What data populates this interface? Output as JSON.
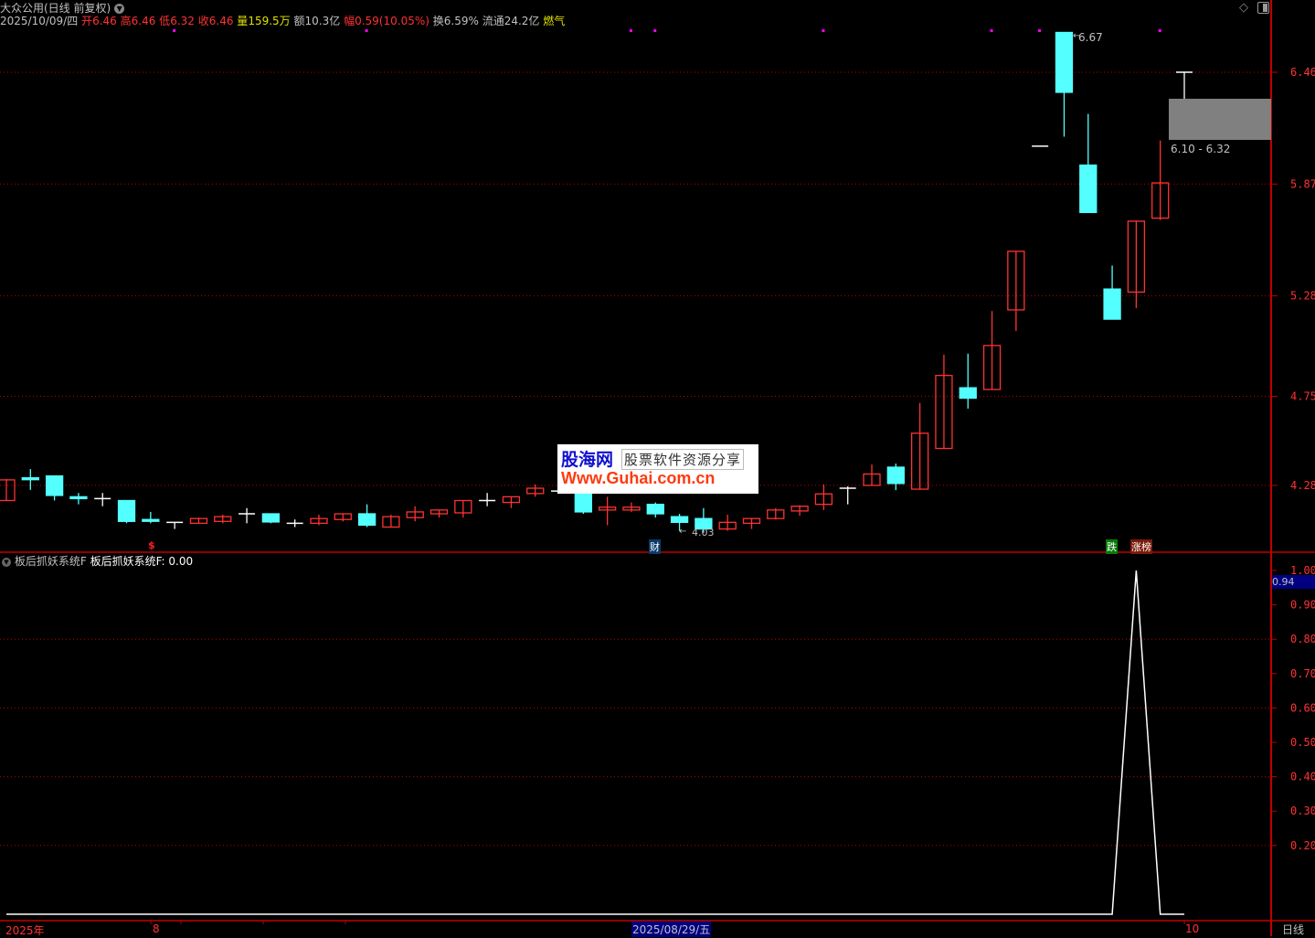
{
  "header": {
    "title": "大众公用(日线 前复权)",
    "date": "2025/10/09/四",
    "open_label": "开",
    "open": "6.46",
    "high_label": "高",
    "high": "6.46",
    "low_label": "低",
    "low": "6.32",
    "close_label": "收",
    "close": "6.46",
    "vol_label": "量",
    "vol": "159.5万",
    "amount": "额10.3亿",
    "chg_label": "幅",
    "chg": "0.59(10.05%)",
    "turnover": "换6.59%",
    "float_cap": "流通24.2亿",
    "sector": "燃气"
  },
  "annotations": {
    "high_marker": "6.67",
    "low_marker": "4.03",
    "range_box": "6.10 - 6.32",
    "dollar_mark": "$",
    "cai_mark": "财",
    "die_mark": "跌",
    "zhang_mark": "涨榜"
  },
  "watermark": {
    "logo": "股海网",
    "slogan": "股票软件资源分享",
    "url": "Www.Guhai.com.cn"
  },
  "indicator": {
    "name": "板后抓妖系统F",
    "value_label": "板后抓妖系统F: 0.00",
    "cursor_value": "0.94"
  },
  "xaxis": {
    "labels": [
      "2025年",
      "8",
      "2025/08/29/五",
      "10"
    ],
    "period": "日线"
  },
  "colors": {
    "up": "#ff3232",
    "down": "#54ffff",
    "flat": "#ffffff",
    "axis": "#c00000",
    "grid": "#c00000",
    "marker": "#ff00ff",
    "highlight": "#000080"
  },
  "chart_data": [
    {
      "type": "candlestick",
      "yticks": [
        6.46,
        5.87,
        5.28,
        4.75,
        4.28
      ],
      "grid": true,
      "signal_bars": [
        7,
        15,
        26,
        27,
        34,
        41,
        43,
        48
      ],
      "open": [
        4.2,
        4.32,
        4.33,
        4.22,
        4.21,
        4.2,
        4.1,
        4.085,
        4.08,
        4.09,
        4.13,
        4.13,
        4.08,
        4.08,
        4.1,
        4.13,
        4.06,
        4.11,
        4.13,
        4.135,
        4.2,
        4.19,
        4.237,
        4.25,
        4.24,
        4.15,
        4.15,
        4.18,
        4.115,
        4.105,
        4.05,
        4.08,
        4.105,
        4.145,
        4.18,
        4.265,
        4.28,
        4.376,
        4.26,
        4.475,
        4.795,
        4.786,
        5.206,
        6.07,
        6.67,
        5.97,
        5.316,
        5.3,
        5.69,
        6.46
      ],
      "high": [
        4.314,
        4.366,
        4.33,
        4.24,
        4.24,
        4.2,
        4.14,
        4.085,
        4.11,
        4.125,
        4.16,
        4.13,
        4.1,
        4.125,
        4.13,
        4.18,
        4.125,
        4.17,
        4.15,
        4.2,
        4.24,
        4.22,
        4.285,
        4.26,
        4.24,
        4.22,
        4.19,
        4.19,
        4.13,
        4.16,
        4.125,
        4.105,
        4.16,
        4.175,
        4.285,
        4.275,
        4.39,
        4.395,
        4.715,
        4.97,
        4.975,
        5.2,
        5.515,
        6.07,
        6.67,
        6.24,
        5.44,
        5.674,
        6.1,
        6.46
      ],
      "low": [
        4.2,
        4.256,
        4.2,
        4.18,
        4.17,
        4.08,
        4.08,
        4.05,
        4.08,
        4.08,
        4.08,
        4.08,
        4.06,
        4.07,
        4.09,
        4.06,
        4.06,
        4.09,
        4.11,
        4.11,
        4.17,
        4.16,
        4.22,
        4.24,
        4.13,
        4.07,
        4.14,
        4.11,
        4.04,
        4.03,
        4.04,
        4.05,
        4.1,
        4.12,
        4.15,
        4.18,
        4.28,
        4.255,
        4.26,
        4.475,
        4.685,
        4.786,
        5.095,
        6.07,
        6.12,
        5.72,
        5.157,
        5.215,
        5.68,
        6.32
      ],
      "close": [
        4.309,
        4.31,
        4.227,
        4.21,
        4.21,
        4.09,
        4.095,
        4.085,
        4.105,
        4.115,
        4.13,
        4.087,
        4.08,
        4.105,
        4.13,
        4.07,
        4.115,
        4.14,
        4.15,
        4.2,
        4.2,
        4.22,
        4.265,
        4.25,
        4.14,
        4.165,
        4.165,
        4.13,
        4.085,
        4.05,
        4.085,
        4.105,
        4.15,
        4.17,
        4.235,
        4.265,
        4.34,
        4.29,
        4.555,
        4.86,
        4.74,
        5.018,
        5.515,
        6.07,
        6.354,
        5.72,
        5.157,
        5.674,
        5.876,
        6.46
      ]
    },
    {
      "type": "line",
      "name": "板后抓妖系统F",
      "yticks": [
        1.0,
        0.9,
        0.8,
        0.7,
        0.6,
        0.5,
        0.4,
        0.3,
        0.2
      ],
      "ylim": [
        0,
        1
      ],
      "values": [
        0,
        0,
        0,
        0,
        0,
        0,
        0,
        0,
        0,
        0,
        0,
        0,
        0,
        0,
        0,
        0,
        0,
        0,
        0,
        0,
        0,
        0,
        0,
        0,
        0,
        0,
        0,
        0,
        0,
        0,
        0,
        0,
        0,
        0,
        0,
        0,
        0,
        0,
        0,
        0,
        0,
        0,
        0,
        0,
        0,
        0,
        0,
        1,
        0,
        0
      ]
    }
  ]
}
